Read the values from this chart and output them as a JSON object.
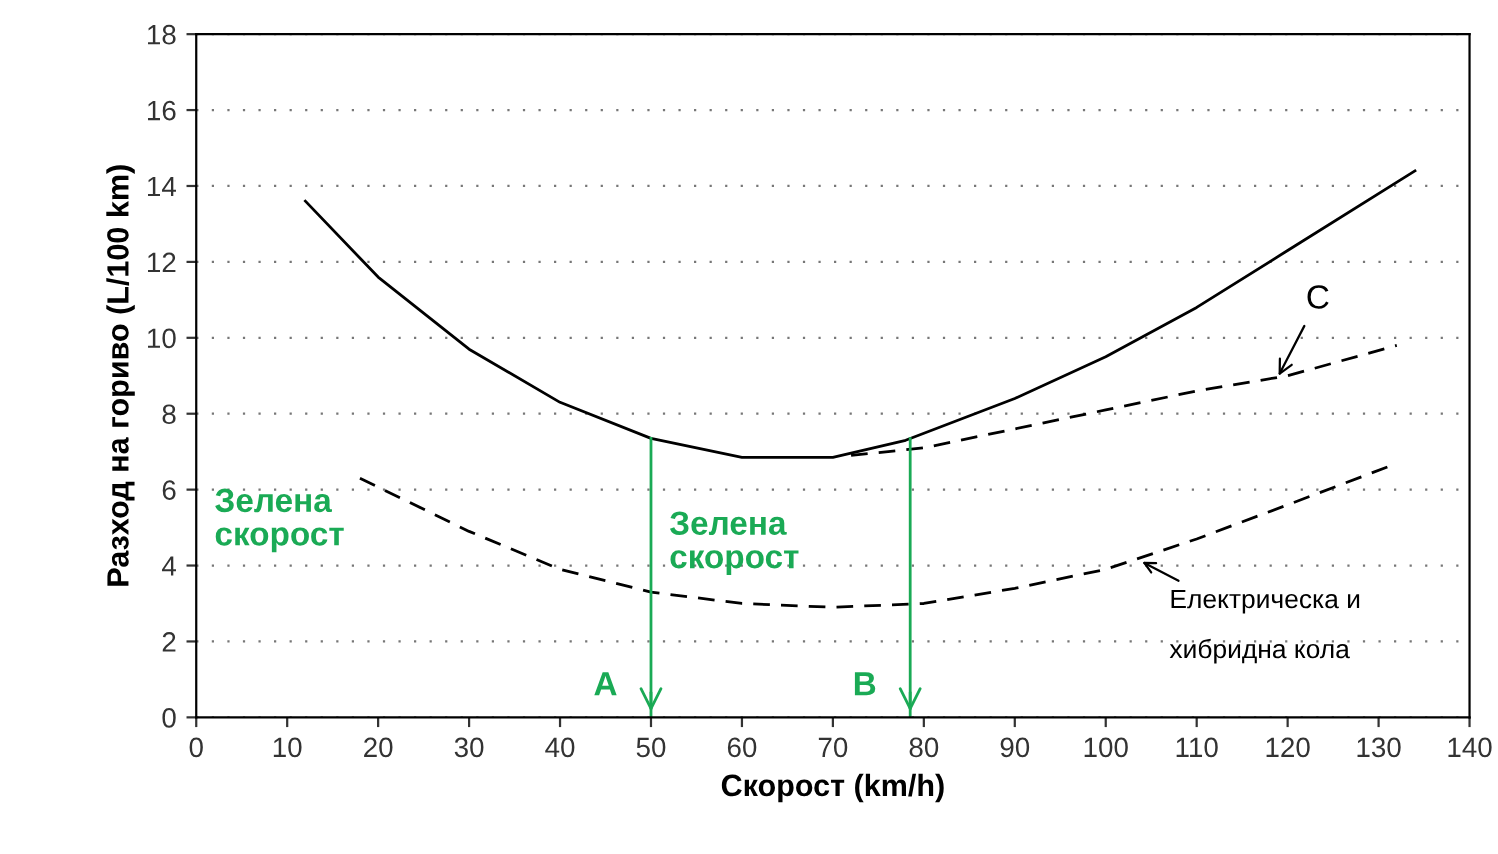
{
  "chart_data": {
    "type": "line",
    "xlabel": "Скорост (km/h)",
    "ylabel": "Разход на гориво (L/100 km)",
    "xlim": [
      0,
      140
    ],
    "ylim": [
      0,
      18
    ],
    "xticks": [
      0,
      10,
      20,
      30,
      40,
      50,
      60,
      70,
      80,
      90,
      100,
      110,
      120,
      130,
      140
    ],
    "yticks": [
      0,
      2,
      4,
      6,
      8,
      10,
      12,
      14,
      16,
      18
    ],
    "grid": "y",
    "marker": "none",
    "series": [
      {
        "color": "#000000",
        "line_style": "solid",
        "x": [
          12,
          20,
          30,
          40,
          50,
          60,
          70,
          78,
          90,
          100,
          110,
          120,
          134
        ],
        "values": [
          13.6,
          11.6,
          9.7,
          8.3,
          7.35,
          6.85,
          6.85,
          7.3,
          8.4,
          9.5,
          10.8,
          12.3,
          14.4
        ]
      },
      {
        "color": "#000000",
        "line_style": "dashed",
        "x": [
          72,
          80,
          90,
          100,
          110,
          120,
          132
        ],
        "values": [
          6.9,
          7.1,
          7.6,
          8.1,
          8.6,
          9.0,
          9.8
        ]
      },
      {
        "color": "#000000",
        "line_style": "dashed",
        "x": [
          18,
          30,
          40,
          50,
          60,
          70,
          80,
          90,
          100,
          110,
          120,
          131
        ],
        "values": [
          6.3,
          4.9,
          3.9,
          3.3,
          3.0,
          2.9,
          3.0,
          3.4,
          3.9,
          4.7,
          5.6,
          6.6
        ]
      }
    ],
    "ref_lines": [
      {
        "axis": "x",
        "value": 50,
        "label": "A",
        "color": "#1aaa55"
      },
      {
        "axis": "x",
        "value": 78.5,
        "label": "B",
        "color": "#1aaa55"
      }
    ],
    "annotations": [
      "Зелена\nскорост",
      "Зелена\nскорост",
      {
        "text": "C",
        "x": 119,
        "y": 9.0
      },
      {
        "text": "Електрическа и\nхибридна кола",
        "x": 104,
        "y": 4.1
      }
    ]
  }
}
